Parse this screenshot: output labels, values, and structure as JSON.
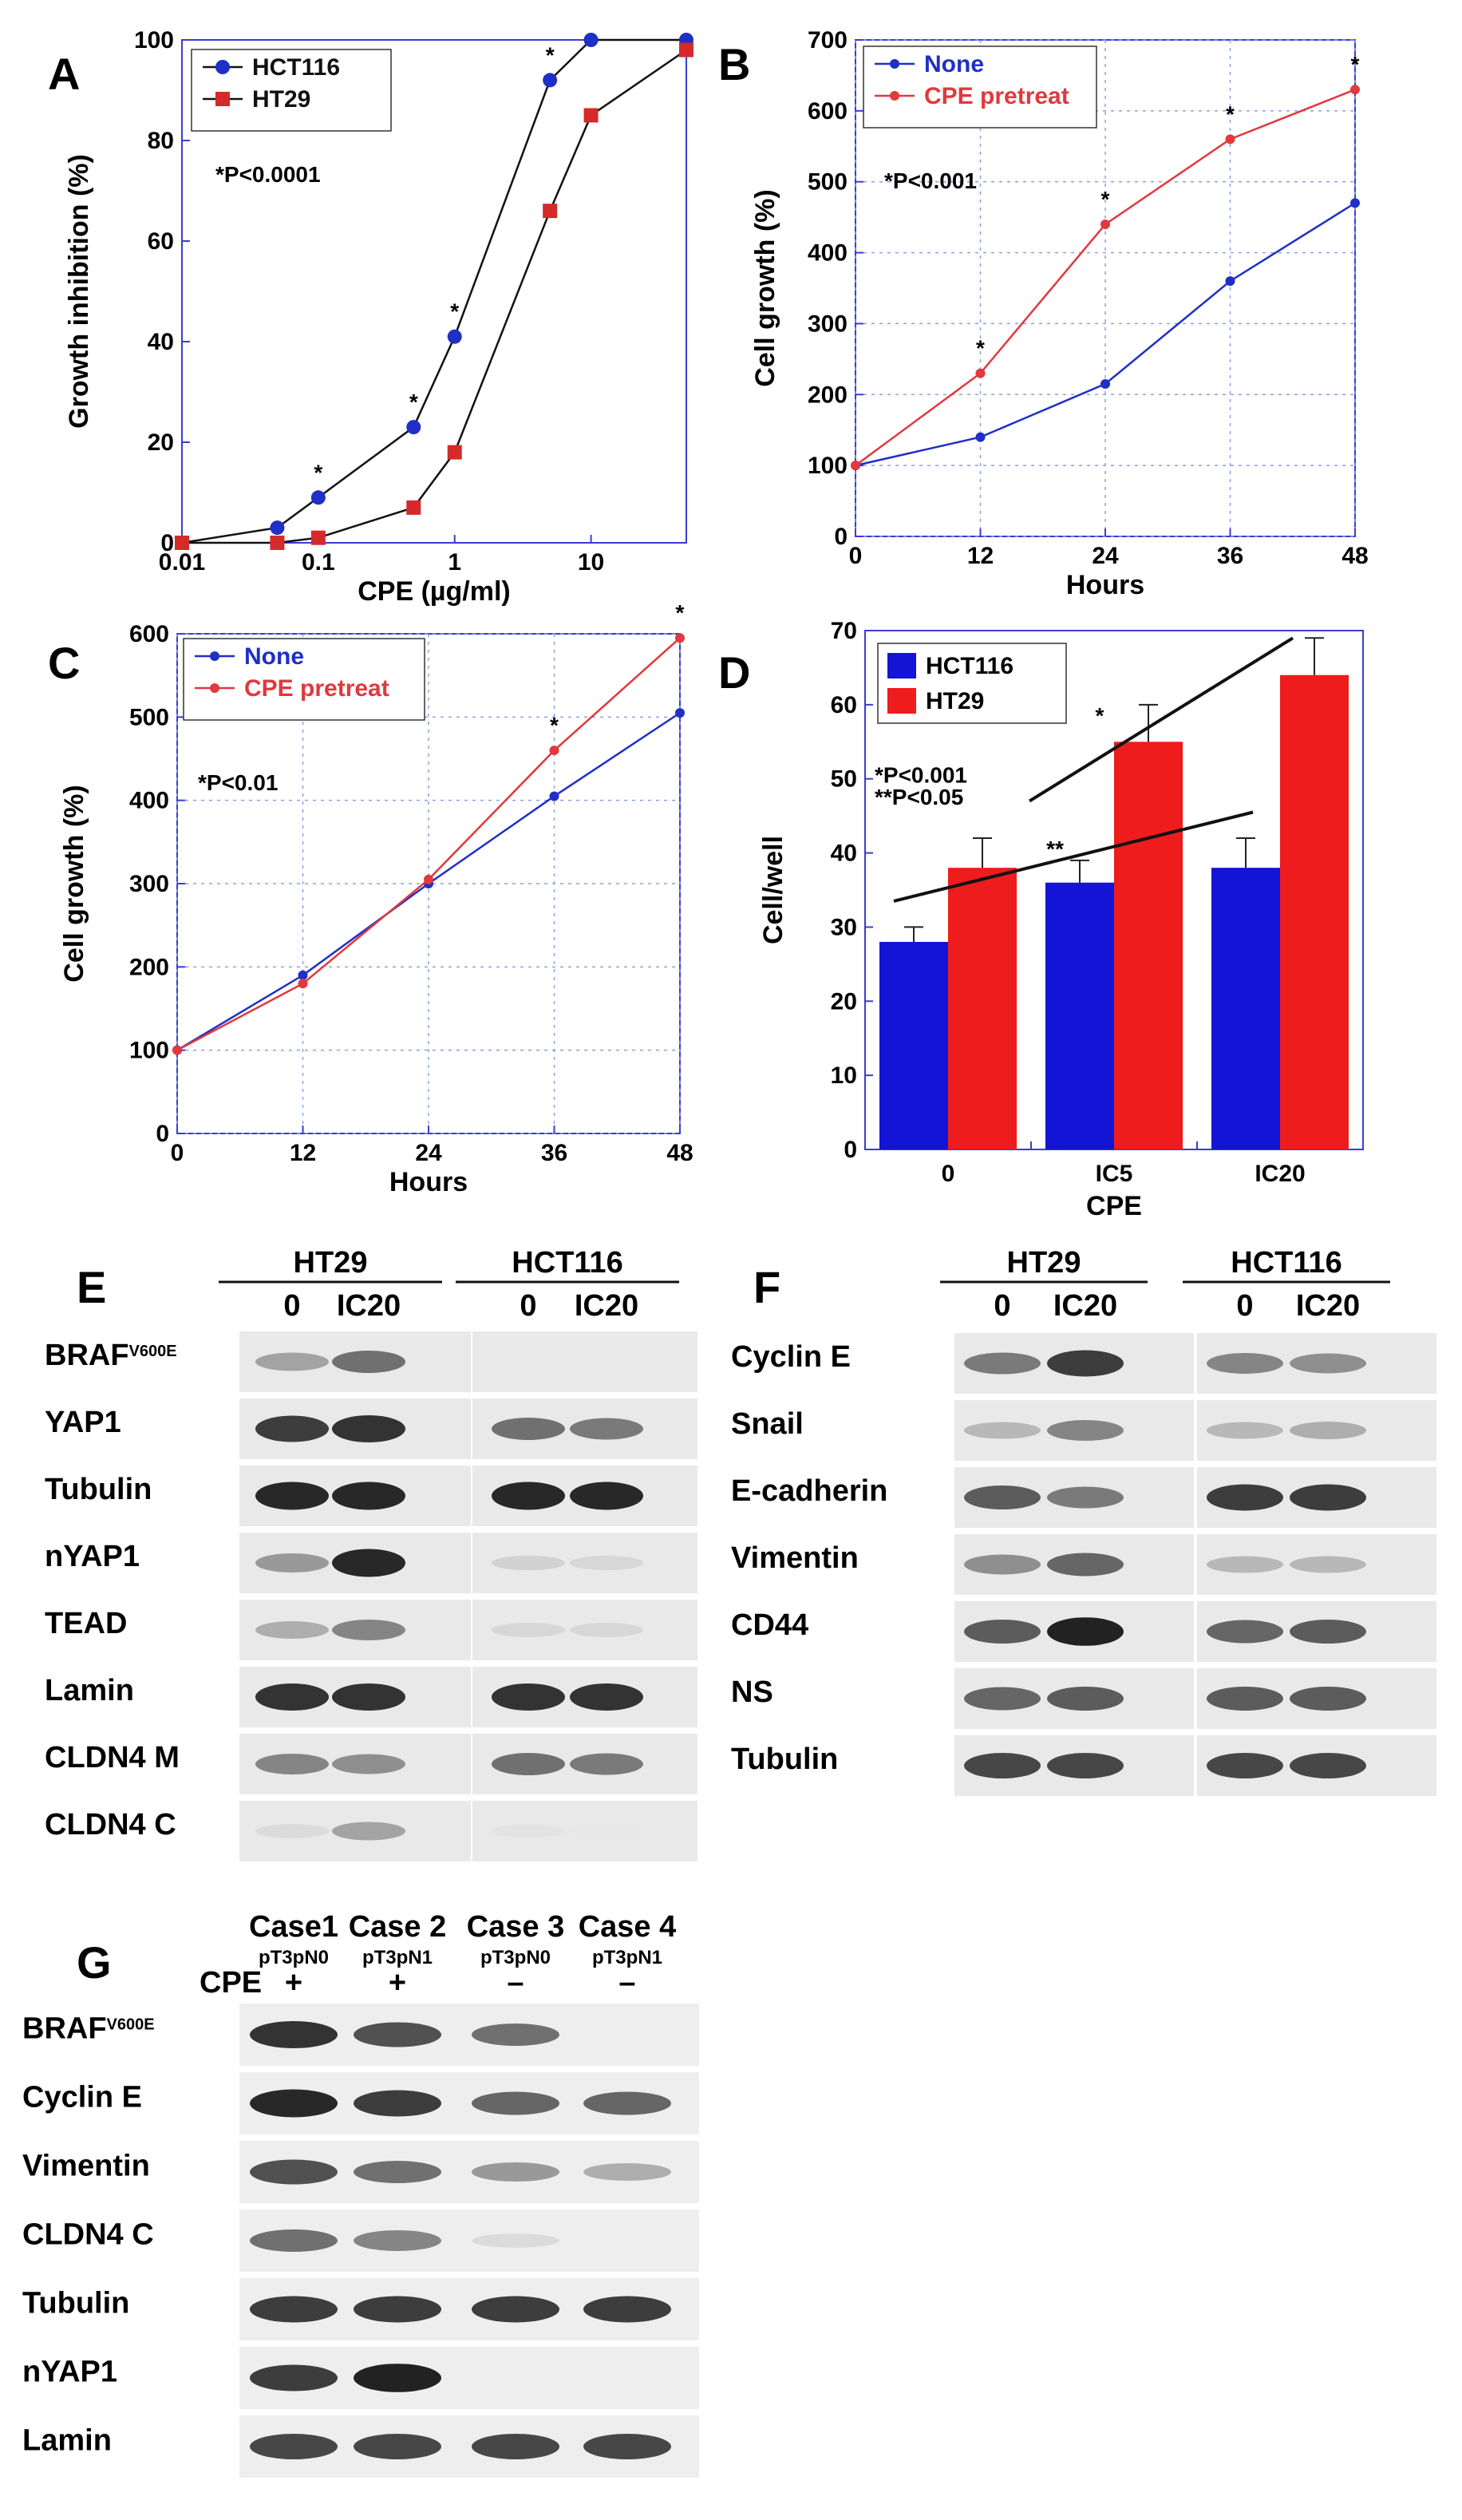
{
  "panels": {
    "A": {
      "label": "A",
      "chart_data": {
        "type": "line",
        "xscale": "log",
        "xlabel": "CPE (µg/ml)",
        "ylabel": "Growth inhibition (%)",
        "xlim": [
          0.01,
          50
        ],
        "ylim": [
          0,
          100
        ],
        "xticks": [
          "0.01",
          "0.1",
          "1",
          "10"
        ],
        "xtick_values": [
          0.01,
          0.1,
          1,
          10
        ],
        "yticks": [
          "0",
          "20",
          "40",
          "60",
          "80",
          "100"
        ],
        "grid": false,
        "legend": "top-left",
        "annotation": "*P<0.0001",
        "series": [
          {
            "name": "HCT116",
            "color": "#1f2fc7",
            "marker": "circle",
            "x": [
              0.01,
              0.05,
              0.1,
              0.5,
              1,
              5,
              10,
              50
            ],
            "y": [
              0,
              3,
              9,
              23,
              41,
              92,
              100,
              100
            ]
          },
          {
            "name": "HT29",
            "color": "#d42a2a",
            "marker": "square",
            "x": [
              0.01,
              0.05,
              0.1,
              0.5,
              1,
              5,
              10,
              50
            ],
            "y": [
              0,
              0,
              1,
              7,
              18,
              66,
              85,
              98
            ]
          }
        ],
        "star_x": [
          0.1,
          0.5,
          1,
          5
        ]
      }
    },
    "B": {
      "label": "B",
      "chart_data": {
        "type": "line",
        "xlabel": "Hours",
        "ylabel": "Cell growth (%)",
        "xlim": [
          0,
          48
        ],
        "ylim": [
          0,
          700
        ],
        "xticks": [
          "0",
          "12",
          "24",
          "36",
          "48"
        ],
        "xtick_values": [
          0,
          12,
          24,
          36,
          48
        ],
        "yticks": [
          "0",
          "100",
          "200",
          "300",
          "400",
          "500",
          "600",
          "700"
        ],
        "ytick_values": [
          0,
          100,
          200,
          300,
          400,
          500,
          600,
          700
        ],
        "grid": true,
        "legend": "top-left",
        "annotation": "*P<0.001",
        "series": [
          {
            "name": "None",
            "color": "#1f2fc7",
            "x": [
              0,
              12,
              24,
              36,
              48
            ],
            "y": [
              100,
              140,
              215,
              360,
              470
            ]
          },
          {
            "name": "CPE pretreat",
            "color": "#e0393e",
            "x": [
              0,
              12,
              24,
              36,
              48
            ],
            "y": [
              100,
              230,
              440,
              560,
              630
            ]
          }
        ],
        "star_x": [
          12,
          24,
          36,
          48
        ]
      }
    },
    "C": {
      "label": "C",
      "chart_data": {
        "type": "line",
        "xlabel": "Hours",
        "ylabel": "Cell growth (%)",
        "xlim": [
          0,
          48
        ],
        "ylim": [
          0,
          600
        ],
        "xticks": [
          "0",
          "12",
          "24",
          "36",
          "48"
        ],
        "xtick_values": [
          0,
          12,
          24,
          36,
          48
        ],
        "yticks": [
          "0",
          "100",
          "200",
          "300",
          "400",
          "500",
          "600"
        ],
        "ytick_values": [
          0,
          100,
          200,
          300,
          400,
          500,
          600
        ],
        "grid": true,
        "legend": "top-left",
        "annotation": "*P<0.01",
        "series": [
          {
            "name": "None",
            "color": "#1f2fc7",
            "x": [
              0,
              12,
              24,
              36,
              48
            ],
            "y": [
              100,
              190,
              300,
              405,
              505
            ]
          },
          {
            "name": "CPE pretreat",
            "color": "#e0393e",
            "x": [
              0,
              12,
              24,
              36,
              48
            ],
            "y": [
              100,
              180,
              305,
              460,
              595
            ]
          }
        ],
        "star_x": [
          36,
          48
        ]
      }
    },
    "D": {
      "label": "D",
      "chart_data": {
        "type": "bar",
        "xlabel": "CPE",
        "ylabel": "Cell/well",
        "categories": [
          "0",
          "IC5",
          "IC20"
        ],
        "ylim": [
          0,
          70
        ],
        "yticks": [
          "0",
          "10",
          "20",
          "30",
          "40",
          "50",
          "60",
          "70"
        ],
        "ytick_values": [
          0,
          10,
          20,
          30,
          40,
          50,
          60,
          70
        ],
        "grid": false,
        "legend": "top-left",
        "annotations": [
          "*P<0.001",
          "**P<0.05"
        ],
        "series": [
          {
            "name": "HCT116",
            "color": "#1414d6",
            "values": [
              28,
              36,
              38
            ],
            "errors": [
              2,
              3,
              4
            ]
          },
          {
            "name": "HT29",
            "color": "#ee1c1c",
            "values": [
              38,
              55,
              64
            ],
            "errors": [
              4,
              5,
              5
            ]
          }
        ],
        "star_labels": [
          "**",
          "*"
        ]
      }
    },
    "E": {
      "label": "E",
      "groups": [
        {
          "name": "HT29",
          "lanes": [
            "0",
            "IC20"
          ]
        },
        {
          "name": "HCT116",
          "lanes": [
            "0",
            "IC20"
          ]
        }
      ],
      "rows": [
        {
          "label": "BRAF",
          "sup": "V600E",
          "bands": [
            0.35,
            0.6,
            0,
            0
          ]
        },
        {
          "label": "YAP1",
          "bands": [
            0.85,
            0.9,
            0.6,
            0.55
          ]
        },
        {
          "label": "Tubulin",
          "bands": [
            0.95,
            0.95,
            0.95,
            0.95
          ]
        },
        {
          "label": "nYAP1",
          "bands": [
            0.4,
            0.95,
            0.12,
            0.1
          ]
        },
        {
          "label": "TEAD",
          "bands": [
            0.3,
            0.5,
            0.1,
            0.1
          ]
        },
        {
          "label": "Lamin",
          "bands": [
            0.9,
            0.9,
            0.9,
            0.9
          ]
        },
        {
          "label": "CLDN4 M",
          "bands": [
            0.5,
            0.45,
            0.6,
            0.55
          ]
        },
        {
          "label": "CLDN4 C",
          "bands": [
            0.08,
            0.35,
            0.04,
            0.02
          ]
        }
      ]
    },
    "F": {
      "label": "F",
      "groups": [
        {
          "name": "HT29",
          "lanes": [
            "0",
            "IC20"
          ]
        },
        {
          "name": "HCT116",
          "lanes": [
            "0",
            "IC20"
          ]
        }
      ],
      "rows": [
        {
          "label": "Cyclin E",
          "bands": [
            0.55,
            0.85,
            0.5,
            0.45
          ]
        },
        {
          "label": "Snail",
          "bands": [
            0.25,
            0.5,
            0.25,
            0.3
          ]
        },
        {
          "label": "E-cadherin",
          "bands": [
            0.7,
            0.55,
            0.85,
            0.85
          ]
        },
        {
          "label": "Vimentin",
          "bands": [
            0.45,
            0.65,
            0.25,
            0.25
          ]
        },
        {
          "label": "CD44",
          "bands": [
            0.7,
            0.98,
            0.65,
            0.7
          ]
        },
        {
          "label": "NS",
          "bands": [
            0.65,
            0.7,
            0.7,
            0.7
          ]
        },
        {
          "label": "Tubulin",
          "bands": [
            0.8,
            0.8,
            0.8,
            0.8
          ]
        }
      ]
    },
    "G": {
      "label": "G",
      "cases": [
        {
          "name": "Case1",
          "stage": "pT3pN0",
          "cpe": "+"
        },
        {
          "name": "Case 2",
          "stage": "pT3pN1",
          "cpe": "+"
        },
        {
          "name": "Case 3",
          "stage": "pT3pN0",
          "cpe": "–"
        },
        {
          "name": "Case 4",
          "stage": "pT3pN1",
          "cpe": "–"
        }
      ],
      "cpe_label": "CPE",
      "rows": [
        {
          "label": "BRAF",
          "sup": "V600E",
          "bands": [
            0.9,
            0.75,
            0.6,
            0.0
          ]
        },
        {
          "label": "Cyclin E",
          "bands": [
            0.95,
            0.85,
            0.65,
            0.65
          ]
        },
        {
          "label": "Vimentin",
          "bands": [
            0.75,
            0.6,
            0.4,
            0.3
          ]
        },
        {
          "label": "CLDN4 C",
          "bands": [
            0.6,
            0.5,
            0.08,
            0.0
          ]
        },
        {
          "label": "Tubulin",
          "bands": [
            0.85,
            0.85,
            0.85,
            0.85
          ]
        },
        {
          "label": "nYAP1",
          "bands": [
            0.85,
            0.98,
            0.0,
            0.0
          ]
        },
        {
          "label": "Lamin",
          "bands": [
            0.8,
            0.8,
            0.8,
            0.8
          ]
        }
      ]
    }
  }
}
